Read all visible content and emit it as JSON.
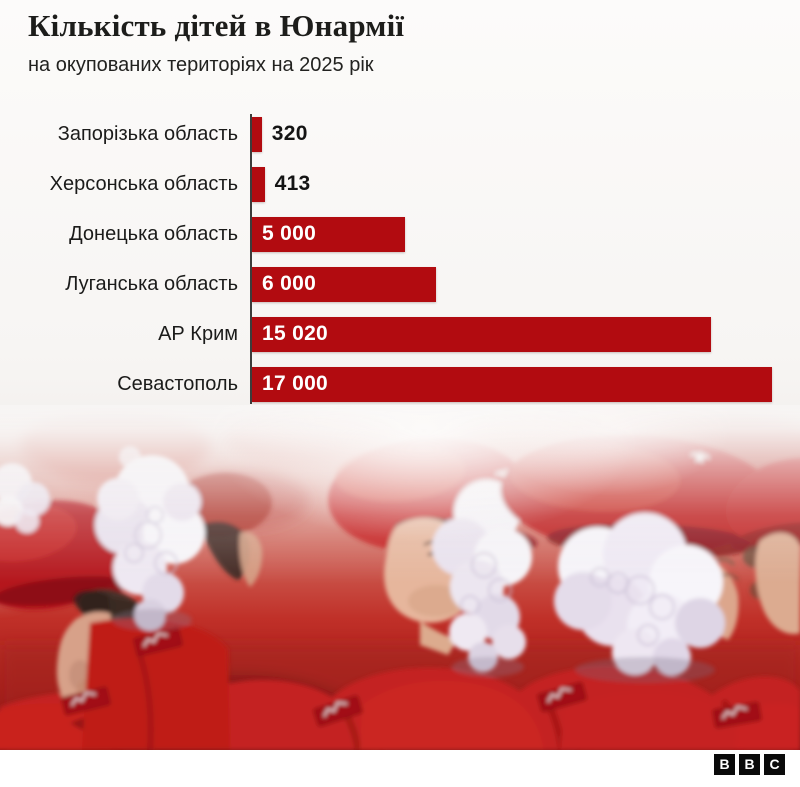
{
  "header": {
    "title": "Кількість дітей в Юнармії",
    "subtitle": "на окупованих територіях на 2025 рік"
  },
  "chart_data": {
    "type": "bar",
    "orientation": "horizontal",
    "title": "Кількість дітей в Юнармії",
    "subtitle": "на окупованих територіях на 2025 рік",
    "categories": [
      "Запорізька область",
      "Херсонська область",
      "Донецька область",
      "Луганська область",
      "АР Крим",
      "Севастополь"
    ],
    "values": [
      320,
      413,
      5000,
      6000,
      15020,
      17000
    ],
    "value_labels": [
      "320",
      "413",
      "5 000",
      "6 000",
      "15 020",
      "17 000"
    ],
    "xlim": [
      0,
      17000
    ],
    "grid": false,
    "legend": "none",
    "bar_color": "#b20b10",
    "axis_line_color": "#3d3c3b",
    "category_label_color": "#1b1b1a",
    "value_label_inside_color": "#ffffff",
    "value_label_outside_color": "#141414"
  },
  "footer": {
    "logo_blocks": [
      "B",
      "B",
      "C"
    ]
  }
}
